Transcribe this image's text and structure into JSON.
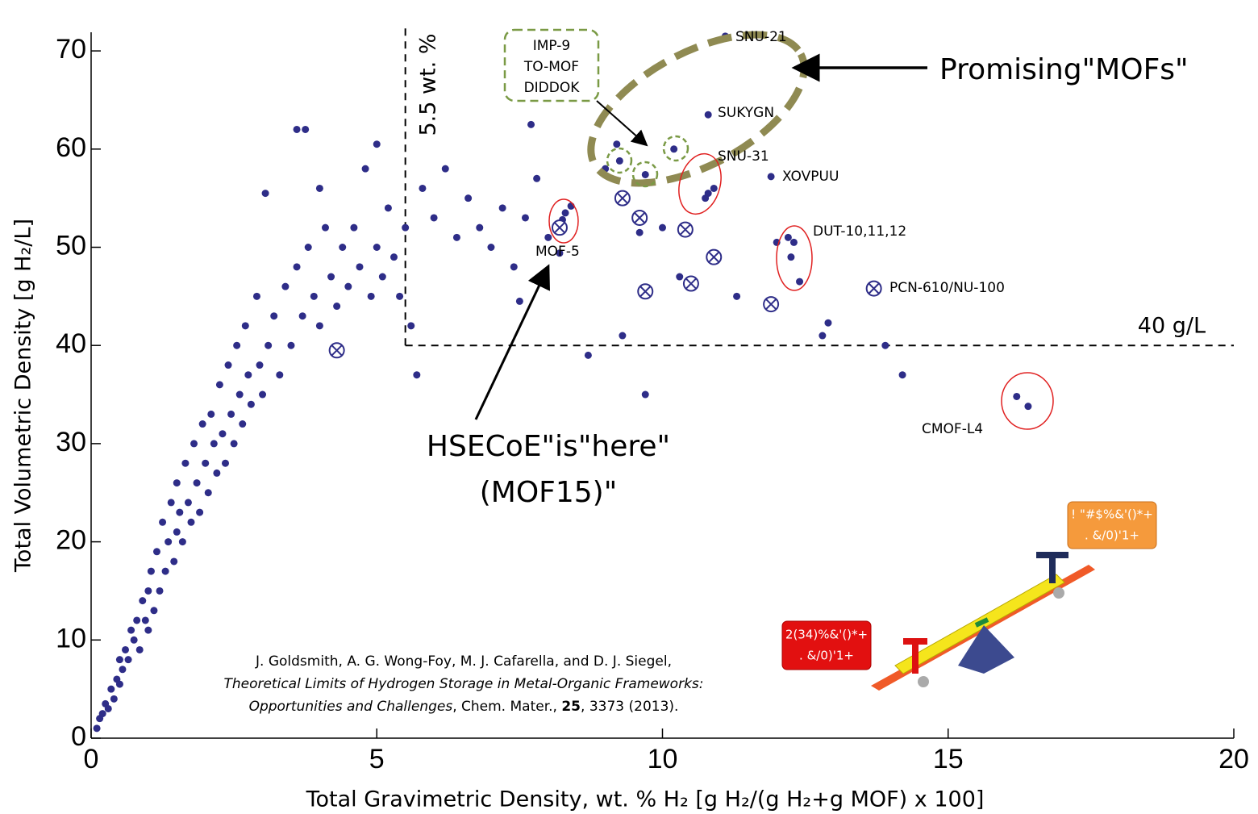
{
  "chart_data": {
    "type": "scatter",
    "xlabel": "Total Gravimetric Density, wt. % H₂ [g H₂/(g H₂+g MOF) x 100]",
    "ylabel": "Total Volumetric  Density [g H₂/L]",
    "xlim": [
      0,
      20
    ],
    "ylim": [
      0,
      72.5
    ],
    "xticks": [
      0,
      5,
      10,
      15,
      20
    ],
    "yticks": [
      0,
      10,
      20,
      30,
      40,
      50,
      60,
      70
    ],
    "series": [
      {
        "marker": "dot",
        "color": "#2e2d88",
        "x": [
          0.1,
          0.15,
          0.2,
          0.25,
          0.3,
          0.35,
          0.4,
          0.45,
          0.5,
          0.5,
          0.55,
          0.6,
          0.65,
          0.7,
          0.75,
          0.8,
          0.85,
          0.9,
          0.95,
          1.0,
          1.0,
          1.05,
          1.1,
          1.15,
          1.2,
          1.25,
          1.3,
          1.35,
          1.4,
          1.45,
          1.5,
          1.5,
          1.55,
          1.6,
          1.65,
          1.7,
          1.75,
          1.8,
          1.85,
          1.9,
          1.95,
          2.0,
          2.05,
          2.1,
          2.15,
          2.2,
          2.25,
          2.3,
          2.35,
          2.4,
          2.45,
          2.5,
          2.55,
          2.6,
          2.65,
          2.7,
          2.75,
          2.8,
          2.9,
          2.95,
          3.0,
          3.05,
          3.1,
          3.2,
          3.3,
          3.4,
          3.5,
          3.6,
          3.6,
          3.7,
          3.75,
          3.8,
          3.9,
          4.0,
          4.0,
          4.1,
          4.2,
          4.3,
          4.4,
          4.5,
          4.6,
          4.7,
          4.8,
          4.9,
          5.0,
          5.0,
          5.1,
          5.2,
          5.3,
          5.4,
          5.5,
          5.6,
          5.7,
          5.8,
          6.0,
          6.2,
          6.4,
          6.6,
          6.8,
          7.0,
          7.2,
          7.4,
          7.6,
          7.7,
          7.8,
          7.5,
          8.0,
          8.3,
          8.4,
          8.25,
          8.2,
          8.7,
          9.0,
          9.2,
          9.3,
          9.6,
          9.7,
          10.0,
          10.2,
          10.3,
          10.8,
          10.9,
          10.75,
          10.8,
          11.1,
          11.3,
          11.9,
          12.0,
          12.2,
          12.3,
          12.25,
          12.4,
          12.8,
          12.9,
          13.9,
          14.2,
          16.2,
          16.4,
          9.25,
          9.7
        ],
        "y": [
          1,
          2,
          2.5,
          3.5,
          3,
          5,
          4,
          6,
          5.5,
          8,
          7,
          9,
          8,
          11,
          10,
          12,
          9,
          14,
          12,
          15,
          11,
          17,
          13,
          19,
          15,
          22,
          17,
          20,
          24,
          18,
          21,
          26,
          23,
          20,
          28,
          24,
          22,
          30,
          26,
          23,
          32,
          28,
          25,
          33,
          30,
          27,
          36,
          31,
          28,
          38,
          33,
          30,
          40,
          35,
          32,
          42,
          37,
          34,
          45,
          38,
          35,
          55.5,
          40,
          43,
          37,
          46,
          40,
          48,
          62,
          43,
          62,
          50,
          45,
          56,
          42,
          52,
          47,
          44,
          50,
          46,
          52,
          48,
          58,
          45,
          60.5,
          50,
          47,
          54,
          49,
          45,
          52,
          42,
          37,
          56,
          53,
          58,
          51,
          55,
          52,
          50,
          54,
          48,
          53,
          62.5,
          57,
          44.5,
          51,
          53.5,
          54.2,
          52.8,
          49.4,
          39,
          58,
          60.5,
          41,
          51.5,
          35,
          52,
          60,
          47,
          55.5,
          56,
          55,
          63.5,
          71.5,
          45,
          57.2,
          50.5,
          51,
          50.5,
          49,
          46.5,
          41,
          42.3,
          40,
          37,
          34.8,
          33.8,
          58.8,
          57.4
        ]
      },
      {
        "marker": "crossed-circle",
        "color": "#2e2d88",
        "x": [
          4.3,
          8.2,
          9.3,
          9.6,
          9.7,
          10.4,
          10.5,
          10.9,
          11.9,
          13.7
        ],
        "y": [
          39.5,
          52,
          55,
          53,
          45.5,
          51.8,
          46.3,
          49,
          44.2,
          45.8
        ]
      }
    ],
    "reference_lines": [
      {
        "x": 5.5,
        "from_y": 40
      },
      {
        "y": 40,
        "from_x": 5.5
      }
    ],
    "annotations": {
      "wt_line": "5.5 wt. %",
      "gl_line": "40 g/L",
      "promising": "Promising\"MOFs\"",
      "hsecoe_1": "HSECoE\"is\"here\"",
      "hsecoe_2": "(MOF15)\"",
      "snu21": "SNU-21",
      "sukygn": "SUKYGN",
      "snu31": "SNU-31",
      "xovpuu": "XOVPUU",
      "dut": "DUT-10,11,12",
      "pcn": "PCN-610/NU-100",
      "cmof": "CMOF-L4",
      "mof5": "MOF-5",
      "box": [
        "IMP-9",
        "TO-MOF",
        "DIDDOK"
      ],
      "seesaw_right": [
        "! \"#$%&'()*+",
        ". &/0)'1+"
      ],
      "seesaw_left": [
        "2(34)%&'()*+",
        ". &/0)'1+"
      ]
    },
    "citation": [
      [
        {
          "text": "J. Goldsmith, A. G. Wong-Foy, M. J. Cafarella, and D. J. Siegel,"
        }
      ],
      [
        {
          "text": "Theoretical Limits of Hydrogen Storage in Metal-Organic Frameworks:",
          "style": "italic"
        }
      ],
      [
        {
          "text": "Opportunities and Challenges",
          "style": "italic"
        },
        {
          "text": ", Chem. Mater., "
        },
        {
          "text": "25",
          "style": "bold"
        },
        {
          "text": ", 3373 (2013)."
        }
      ]
    ]
  }
}
